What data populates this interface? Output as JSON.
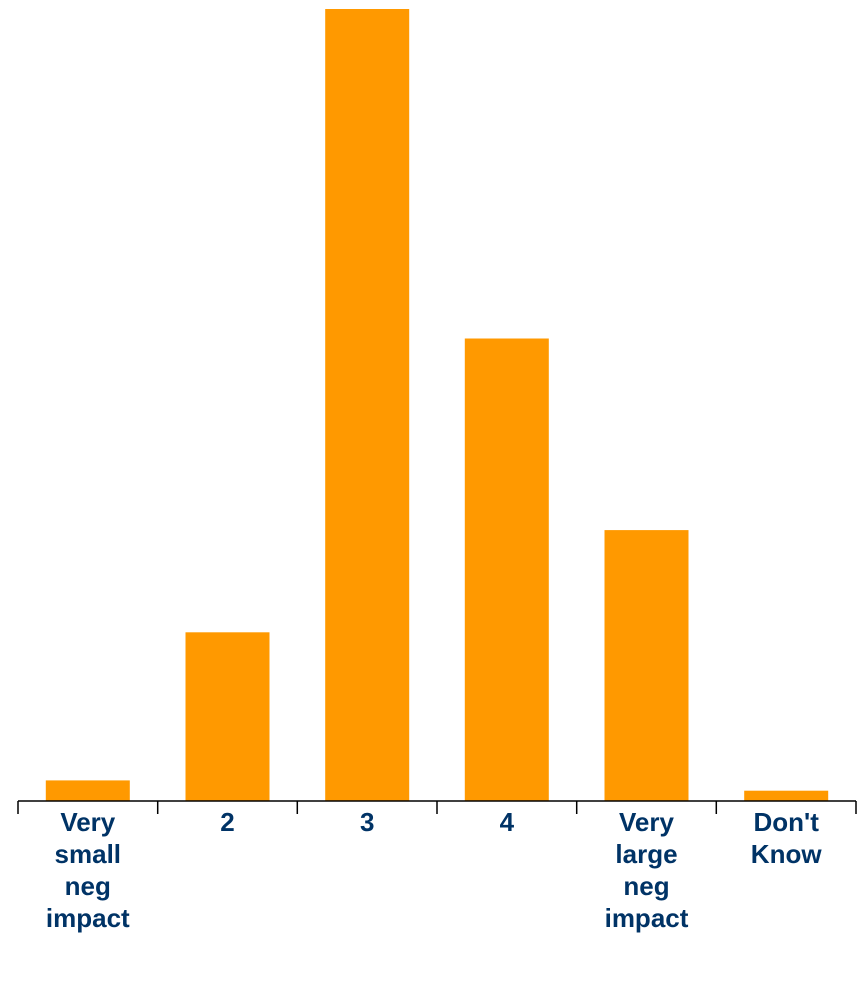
{
  "chart_data": {
    "type": "bar",
    "categories": [
      "Very\nsmall\nneg\nimpact",
      "2",
      "3",
      "4",
      "Very\nlarge\nneg\nimpact",
      "Don't\nKnow"
    ],
    "values": [
      2.6,
      21.3,
      100,
      58.4,
      34.2,
      1.3
    ],
    "ylim": [
      0,
      100
    ],
    "grid": false,
    "title": "",
    "xlabel": "",
    "ylabel": "",
    "colors": {
      "bar": "#FF9900",
      "axis": "#000000",
      "label": "#003366"
    }
  }
}
